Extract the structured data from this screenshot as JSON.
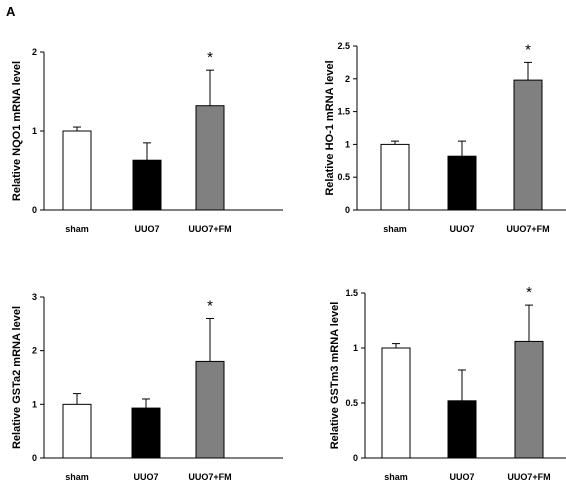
{
  "panel_label": "A",
  "chart_data": [
    {
      "type": "bar",
      "categories": [
        "sham",
        "UUO7",
        "UUO7+FM"
      ],
      "values": [
        1.0,
        0.63,
        1.32
      ],
      "errors": [
        0.05,
        0.22,
        0.45
      ],
      "colors": [
        "#ffffff",
        "#000000",
        "#808080"
      ],
      "annotations": [
        "",
        "",
        "*"
      ],
      "ylabel": "Relative NQO1 mRNA level",
      "ylim": [
        0,
        2
      ],
      "yticks": [
        0,
        1,
        2
      ],
      "ytick_labels": [
        "0",
        "1",
        "2"
      ]
    },
    {
      "type": "bar",
      "categories": [
        "sham",
        "UUO7",
        "UUO7+FM"
      ],
      "values": [
        1.0,
        0.82,
        1.98
      ],
      "errors": [
        0.05,
        0.23,
        0.27
      ],
      "colors": [
        "#ffffff",
        "#000000",
        "#808080"
      ],
      "annotations": [
        "",
        "",
        "*"
      ],
      "ylabel": "Relative HO-1 mRNA level",
      "ylim": [
        0,
        2.5
      ],
      "yticks": [
        0,
        0.5,
        1,
        1.5,
        2,
        2.5
      ],
      "ytick_labels": [
        "0",
        "0.5",
        "1",
        "1.5",
        "2",
        "2.5"
      ]
    },
    {
      "type": "bar",
      "categories": [
        "sham",
        "UUO7",
        "UUO7+FM"
      ],
      "values": [
        1.0,
        0.93,
        1.8
      ],
      "errors": [
        0.2,
        0.17,
        0.8
      ],
      "colors": [
        "#ffffff",
        "#000000",
        "#808080"
      ],
      "annotations": [
        "",
        "",
        "*"
      ],
      "ylabel": "Relative GSTa2 mRNA level",
      "ylim": [
        0,
        3
      ],
      "yticks": [
        0,
        1,
        2,
        3
      ],
      "ytick_labels": [
        "0",
        "1",
        "2",
        "3"
      ]
    },
    {
      "type": "bar",
      "categories": [
        "sham",
        "UUO7",
        "UUO7+FM"
      ],
      "values": [
        1.0,
        0.52,
        1.06
      ],
      "errors": [
        0.04,
        0.28,
        0.33
      ],
      "colors": [
        "#ffffff",
        "#000000",
        "#808080"
      ],
      "annotations": [
        "",
        "",
        "*"
      ],
      "ylabel": "Relative GSTm3 mRNA level",
      "ylim": [
        0,
        1.5
      ],
      "yticks": [
        0,
        0.5,
        1,
        1.5
      ],
      "ytick_labels": [
        "0",
        "0.5",
        "1",
        "1.5"
      ]
    }
  ]
}
